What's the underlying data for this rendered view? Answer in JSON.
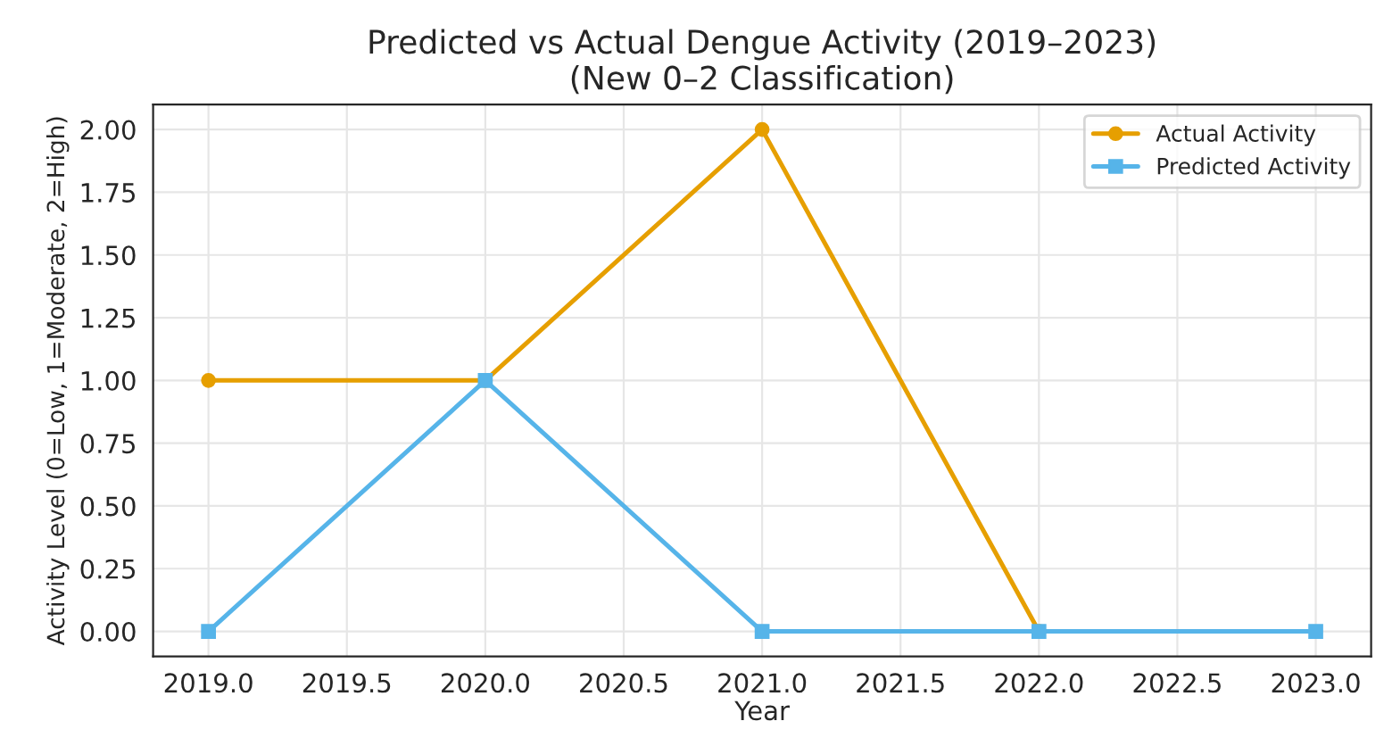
{
  "chart_data": {
    "type": "line",
    "title": "Predicted vs Actual Dengue Activity (2019–2023)\n(New 0–2 Classification)",
    "xlabel": "Year",
    "ylabel": "Activity Level (0=Low, 1=Moderate, 2=High)",
    "x": [
      2019,
      2020,
      2021,
      2022,
      2023
    ],
    "series": [
      {
        "name": "Actual Activity",
        "color": "#e69f00",
        "marker": "circle",
        "values": [
          1,
          1,
          2,
          0,
          null
        ]
      },
      {
        "name": "Predicted Activity",
        "color": "#56b4e9",
        "marker": "square",
        "values": [
          0,
          1,
          0,
          0,
          0
        ]
      }
    ],
    "xlim": [
      2018.8,
      2023.2
    ],
    "ylim": [
      -0.1,
      2.1
    ],
    "xticks": [
      {
        "value": 2019,
        "label": "2019.0"
      },
      {
        "value": 2019.5,
        "label": "2019.5"
      },
      {
        "value": 2020,
        "label": "2020.0"
      },
      {
        "value": 2020.5,
        "label": "2020.5"
      },
      {
        "value": 2021,
        "label": "2021.0"
      },
      {
        "value": 2021.5,
        "label": "2021.5"
      },
      {
        "value": 2022,
        "label": "2022.0"
      },
      {
        "value": 2022.5,
        "label": "2022.5"
      },
      {
        "value": 2023,
        "label": "2023.0"
      }
    ],
    "yticks": [
      {
        "value": 0,
        "label": "0.00"
      },
      {
        "value": 0.25,
        "label": "0.25"
      },
      {
        "value": 0.5,
        "label": "0.50"
      },
      {
        "value": 0.75,
        "label": "0.75"
      },
      {
        "value": 1,
        "label": "1.00"
      },
      {
        "value": 1.25,
        "label": "1.25"
      },
      {
        "value": 1.5,
        "label": "1.50"
      },
      {
        "value": 1.75,
        "label": "1.75"
      },
      {
        "value": 2,
        "label": "2.00"
      }
    ],
    "grid": true,
    "legend": "top right",
    "line_style": "solid"
  }
}
